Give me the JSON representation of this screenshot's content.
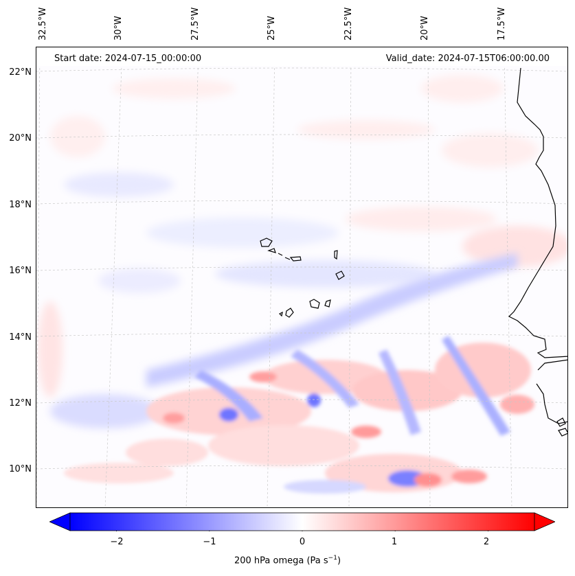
{
  "header": {
    "start_date": "Start date: 2024-07-15_00:00:00",
    "valid_date": "Valid_date: 2024-07-15T06:00:00.00"
  },
  "longitude_labels": [
    "32.5°W",
    "30°W",
    "27.5°W",
    "25°W",
    "22.5°W",
    "20°W",
    "17.5°W"
  ],
  "latitude_labels": [
    "22°N",
    "20°N",
    "18°N",
    "16°N",
    "14°N",
    "12°N",
    "10°N"
  ],
  "colorbar": {
    "ticks": [
      "−2",
      "−1",
      "0",
      "1",
      "2"
    ],
    "tick_values": [
      -2,
      -1,
      0,
      1,
      2
    ],
    "range": [
      -2.5,
      2.5
    ],
    "label_main": "200 hPa omega (Pa s",
    "label_sup": "−1",
    "label_end": ")",
    "colormap": "bwr",
    "low_color": "#0000ff",
    "mid_color": "#ffffff",
    "high_color": "#ff0000"
  },
  "map": {
    "field": "200 hPa omega",
    "extent_lon": [
      -32.5,
      -15.5
    ],
    "extent_lat": [
      9,
      22.5
    ],
    "grid": true,
    "coastline_color": "#000000"
  }
}
